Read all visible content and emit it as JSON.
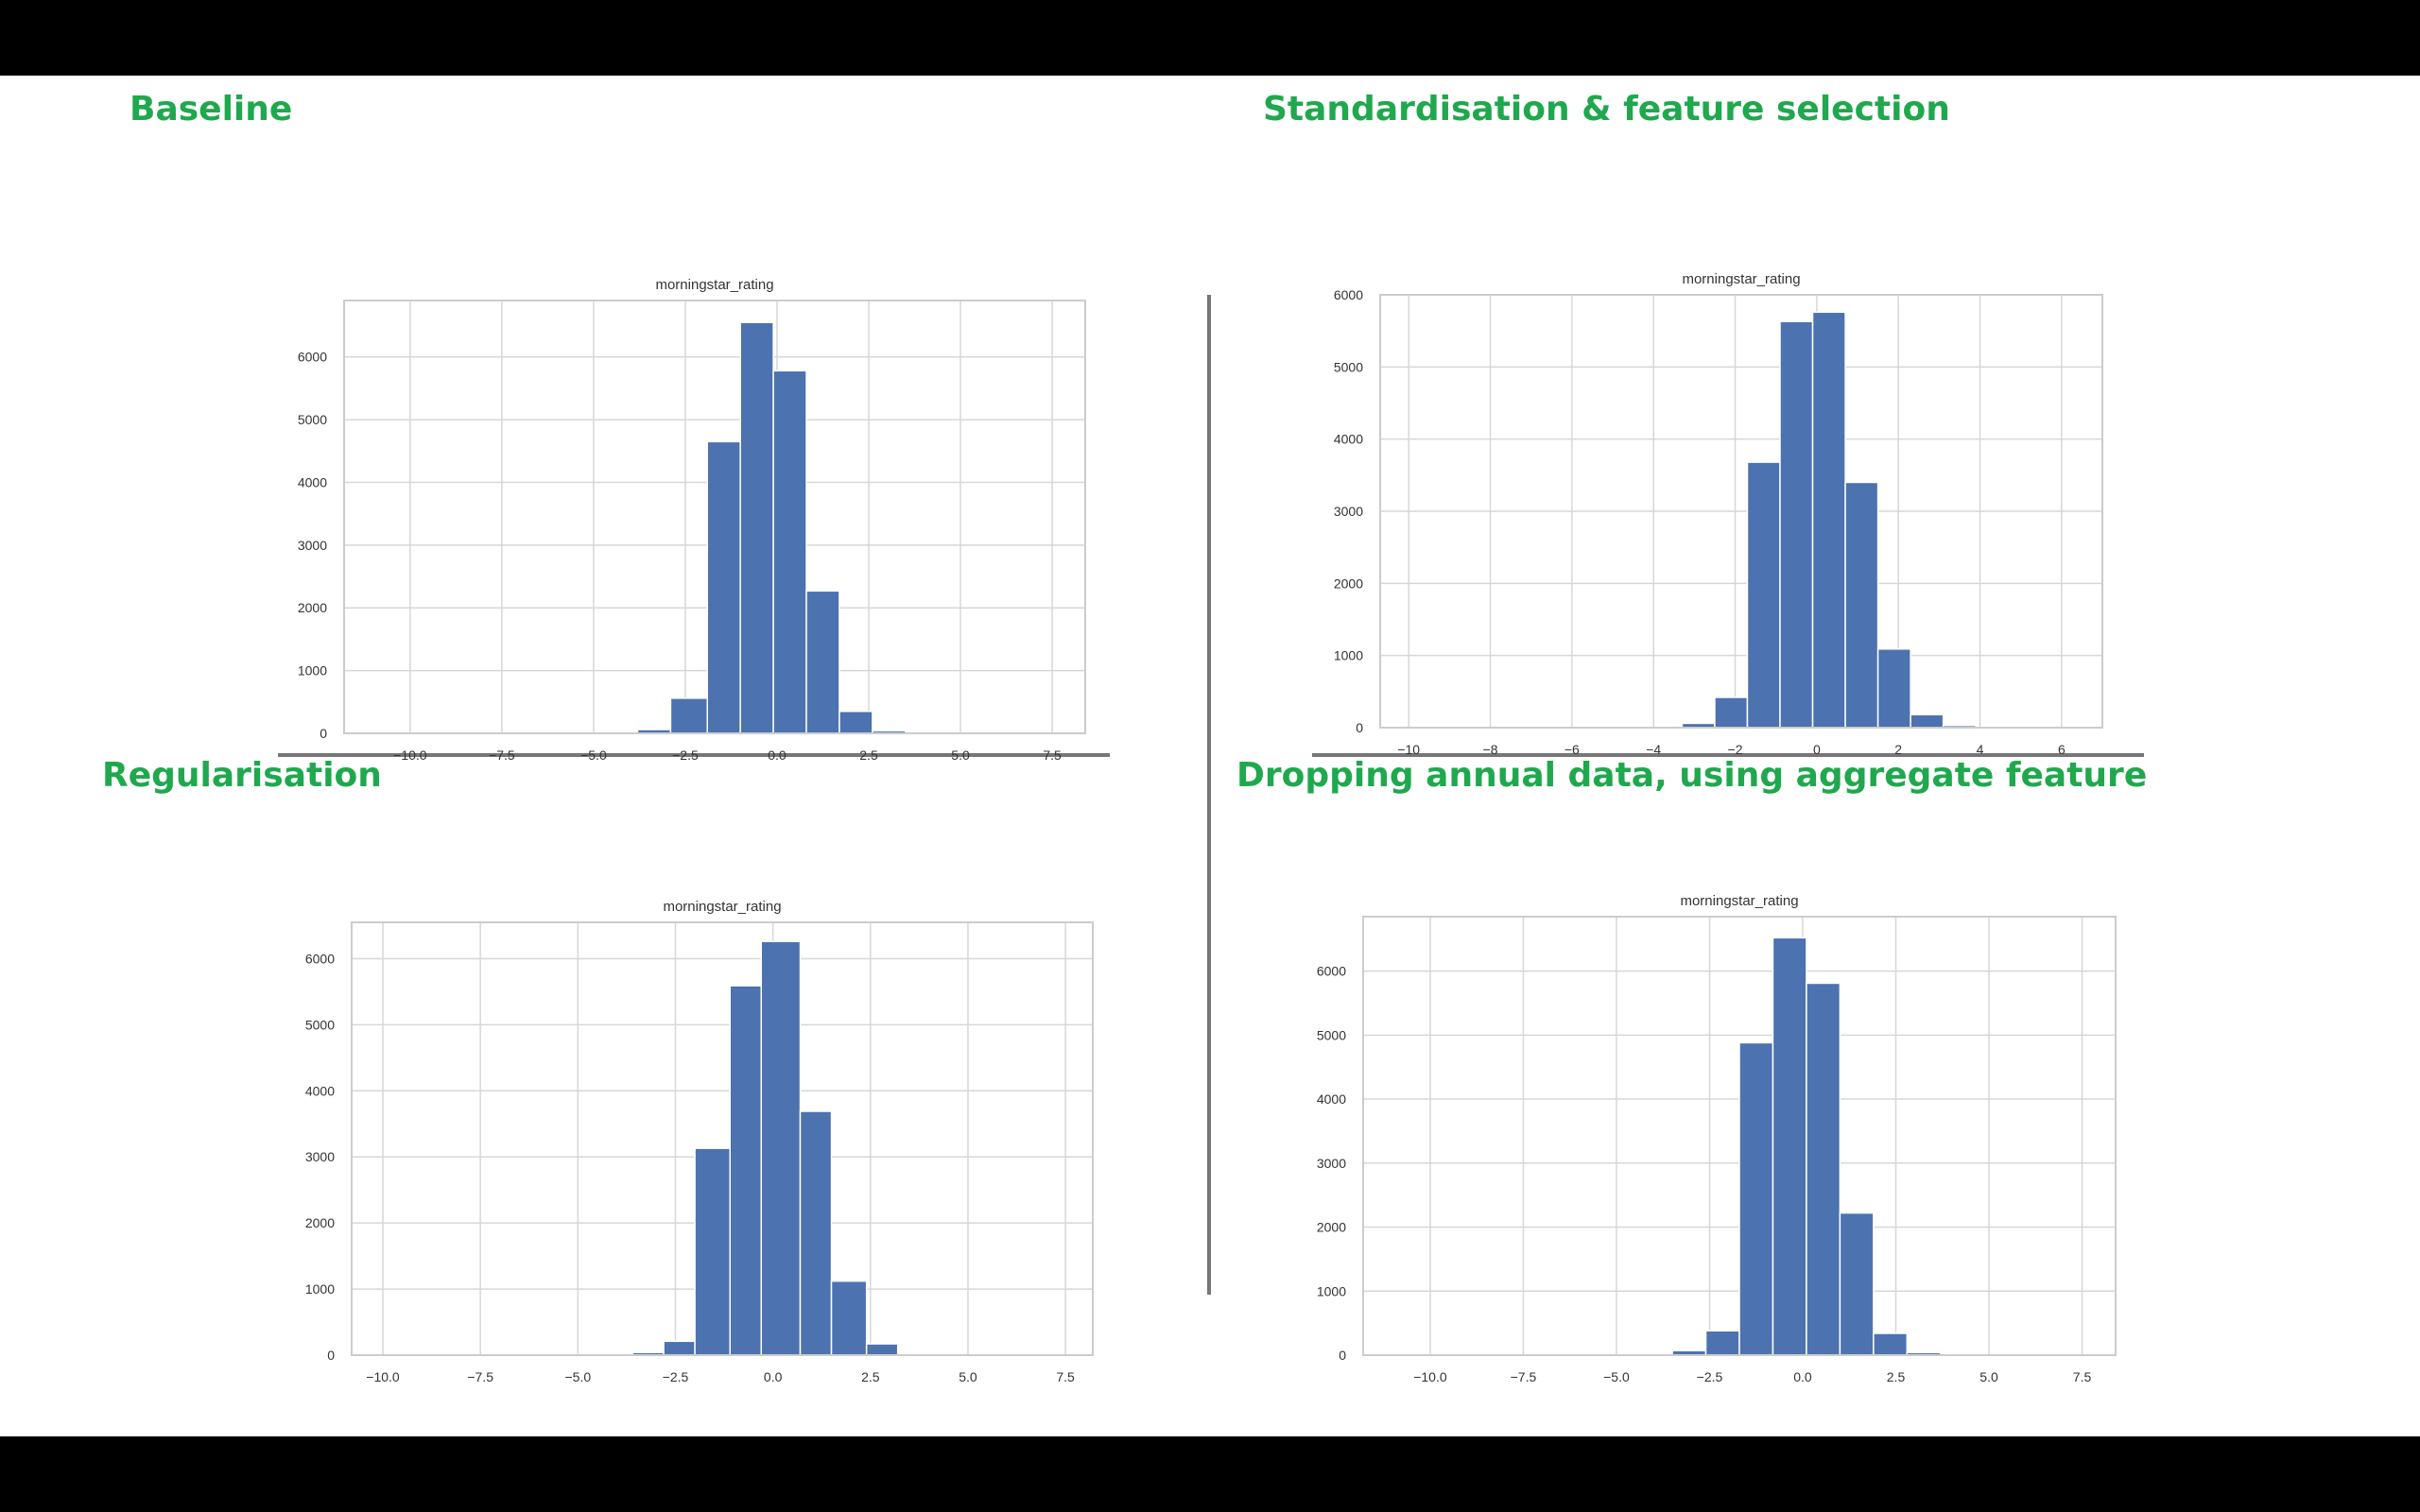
{
  "colors": {
    "background": "#000000",
    "slide": "#ffffff",
    "heading": "#1fa84d",
    "bar": "#4c72b0",
    "grid": "#d7d7d7",
    "rule": "#767676"
  },
  "headings": {
    "top_left": "Baseline",
    "top_right": "Standardisation & feature selection",
    "bottom_left": "Regularisation",
    "bottom_right": "Dropping annual data, using aggregate feature"
  },
  "chart_data": [
    {
      "type": "bar",
      "title": "morningstar_rating",
      "grid": true,
      "xlim": [
        -11.8,
        8.4
      ],
      "ylim": [
        0,
        6900
      ],
      "xticks": [
        -10.0,
        -7.5,
        -5.0,
        -2.5,
        0.0,
        2.5,
        5.0,
        7.5
      ],
      "xtick_labels": [
        "−10.0",
        "−7.5",
        "−5.0",
        "−2.5",
        "0.0",
        "2.5",
        "5.0",
        "7.5"
      ],
      "yticks": [
        0,
        1000,
        2000,
        3000,
        4000,
        5000,
        6000
      ],
      "bins": [
        [
          -3.8,
          -2.9
        ],
        [
          -2.9,
          -1.9
        ],
        [
          -1.9,
          -1.0
        ],
        [
          -1.0,
          -0.1
        ],
        [
          -0.1,
          0.8
        ],
        [
          0.8,
          1.7
        ],
        [
          1.7,
          2.6
        ],
        [
          2.6,
          3.5
        ]
      ],
      "values": [
        60,
        560,
        4650,
        6550,
        5780,
        2270,
        350,
        40
      ]
    },
    {
      "type": "bar",
      "title": "morningstar_rating",
      "grid": true,
      "xlim": [
        -10.7,
        7.0
      ],
      "ylim": [
        0,
        6000
      ],
      "xticks": [
        -10,
        -8,
        -6,
        -4,
        -2,
        0,
        2,
        4,
        6
      ],
      "xtick_labels": [
        "−10",
        "−8",
        "−6",
        "−4",
        "−2",
        "0",
        "2",
        "4",
        "6"
      ],
      "yticks": [
        0,
        1000,
        2000,
        3000,
        4000,
        5000,
        6000
      ],
      "bins": [
        [
          -3.3,
          -2.5
        ],
        [
          -2.5,
          -1.7
        ],
        [
          -1.7,
          -0.9
        ],
        [
          -0.9,
          -0.1
        ],
        [
          -0.1,
          0.7
        ],
        [
          0.7,
          1.5
        ],
        [
          1.5,
          2.3
        ],
        [
          2.3,
          3.1
        ],
        [
          3.1,
          3.9
        ]
      ],
      "values": [
        60,
        420,
        3680,
        5630,
        5760,
        3400,
        1090,
        180,
        30
      ]
    },
    {
      "type": "bar",
      "title": "morningstar_rating",
      "grid": true,
      "xlim": [
        -10.8,
        8.2
      ],
      "ylim": [
        0,
        6550
      ],
      "xticks": [
        -10.0,
        -7.5,
        -5.0,
        -2.5,
        0.0,
        2.5,
        5.0,
        7.5
      ],
      "xtick_labels": [
        "−10.0",
        "−7.5",
        "−5.0",
        "−2.5",
        "0.0",
        "2.5",
        "5.0",
        "7.5"
      ],
      "yticks": [
        0,
        1000,
        2000,
        3000,
        4000,
        5000,
        6000
      ],
      "bins": [
        [
          -3.6,
          -2.8
        ],
        [
          -2.8,
          -2.0
        ],
        [
          -2.0,
          -1.1
        ],
        [
          -1.1,
          -0.3
        ],
        [
          -0.3,
          0.7
        ],
        [
          0.7,
          1.5
        ],
        [
          1.5,
          2.4
        ],
        [
          2.4,
          3.2
        ]
      ],
      "values": [
        40,
        210,
        3130,
        5590,
        6260,
        3690,
        1120,
        170
      ]
    },
    {
      "type": "bar",
      "title": "morningstar_rating",
      "grid": true,
      "xlim": [
        -11.8,
        8.4
      ],
      "ylim": [
        0,
        6850
      ],
      "xticks": [
        -10.0,
        -7.5,
        -5.0,
        -2.5,
        0.0,
        2.5,
        5.0,
        7.5
      ],
      "xtick_labels": [
        "−10.0",
        "−7.5",
        "−5.0",
        "−2.5",
        "0.0",
        "2.5",
        "5.0",
        "7.5"
      ],
      "yticks": [
        0,
        1000,
        2000,
        3000,
        4000,
        5000,
        6000
      ],
      "bins": [
        [
          -3.5,
          -2.6
        ],
        [
          -2.6,
          -1.7
        ],
        [
          -1.7,
          -0.8
        ],
        [
          -0.8,
          0.1
        ],
        [
          0.1,
          1.0
        ],
        [
          1.0,
          1.9
        ],
        [
          1.9,
          2.8
        ],
        [
          2.8,
          3.7
        ]
      ],
      "values": [
        70,
        380,
        4880,
        6520,
        5810,
        2220,
        340,
        40
      ]
    }
  ]
}
